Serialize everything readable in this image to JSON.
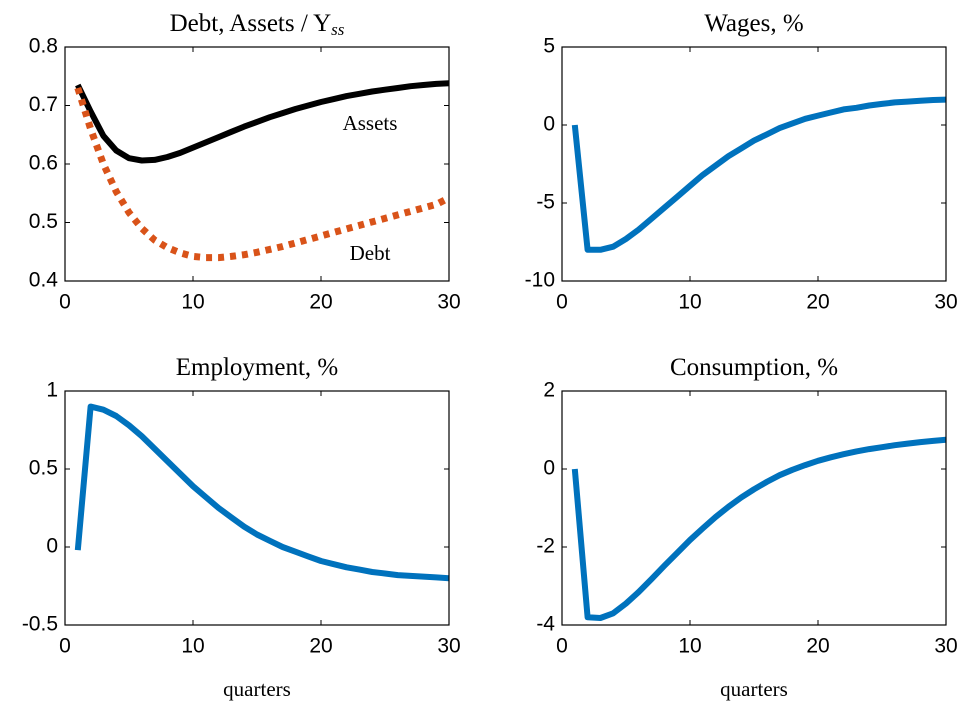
{
  "chart_data": [
    {
      "type": "line",
      "title": "Debt, Assets / Y",
      "title_subscript": "ss",
      "x": [
        1,
        2,
        3,
        4,
        5,
        6,
        7,
        8,
        9,
        10,
        11,
        12,
        13,
        14,
        15,
        16,
        17,
        18,
        19,
        20,
        21,
        22,
        23,
        24,
        25,
        26,
        27,
        28,
        29,
        30
      ],
      "xlim": [
        0,
        30
      ],
      "xticks": [
        0,
        10,
        20,
        30
      ],
      "ylim": [
        0.4,
        0.8
      ],
      "yticks": [
        0.4,
        0.5,
        0.6,
        0.7,
        0.8
      ],
      "annotations": [
        "Assets",
        "Debt"
      ],
      "series": [
        {
          "name": "Assets",
          "color": "#000000",
          "linestyle": "solid",
          "values": [
            0.735,
            0.69,
            0.648,
            0.623,
            0.61,
            0.606,
            0.607,
            0.612,
            0.619,
            0.628,
            0.637,
            0.646,
            0.655,
            0.664,
            0.672,
            0.68,
            0.687,
            0.694,
            0.7,
            0.706,
            0.711,
            0.716,
            0.72,
            0.724,
            0.727,
            0.73,
            0.733,
            0.735,
            0.737,
            0.738
          ]
        },
        {
          "name": "Debt",
          "color": "#d95319",
          "linestyle": "dotted",
          "values": [
            0.73,
            0.66,
            0.6,
            0.553,
            0.517,
            0.49,
            0.47,
            0.457,
            0.448,
            0.442,
            0.44,
            0.44,
            0.442,
            0.445,
            0.449,
            0.454,
            0.459,
            0.465,
            0.471,
            0.477,
            0.483,
            0.489,
            0.495,
            0.501,
            0.507,
            0.513,
            0.519,
            0.525,
            0.531,
            0.542
          ]
        }
      ]
    },
    {
      "type": "line",
      "title": "Wages, %",
      "x": [
        1,
        2,
        3,
        4,
        5,
        6,
        7,
        8,
        9,
        10,
        11,
        12,
        13,
        14,
        15,
        16,
        17,
        18,
        19,
        20,
        21,
        22,
        23,
        24,
        25,
        26,
        27,
        28,
        29,
        30
      ],
      "xlim": [
        0,
        30
      ],
      "xticks": [
        0,
        10,
        20,
        30
      ],
      "ylim": [
        -10,
        5
      ],
      "yticks": [
        -10,
        -5,
        0,
        5
      ],
      "series": [
        {
          "color": "#0072bd",
          "linestyle": "solid",
          "values": [
            0,
            -8,
            -8,
            -7.8,
            -7.3,
            -6.7,
            -6,
            -5.3,
            -4.6,
            -3.9,
            -3.2,
            -2.6,
            -2,
            -1.5,
            -1,
            -0.6,
            -0.2,
            0.1,
            0.4,
            0.6,
            0.8,
            1,
            1.1,
            1.25,
            1.35,
            1.45,
            1.5,
            1.55,
            1.6,
            1.63
          ]
        }
      ]
    },
    {
      "type": "line",
      "title": "Employment, %",
      "xlabel": "quarters",
      "x": [
        1,
        2,
        3,
        4,
        5,
        6,
        7,
        8,
        9,
        10,
        11,
        12,
        13,
        14,
        15,
        16,
        17,
        18,
        19,
        20,
        21,
        22,
        23,
        24,
        25,
        26,
        27,
        28,
        29,
        30
      ],
      "xlim": [
        0,
        30
      ],
      "xticks": [
        0,
        10,
        20,
        30
      ],
      "ylim": [
        -0.5,
        1
      ],
      "yticks": [
        -0.5,
        0,
        0.5,
        1
      ],
      "series": [
        {
          "color": "#0072bd",
          "linestyle": "solid",
          "values": [
            -0.02,
            0.9,
            0.88,
            0.84,
            0.78,
            0.71,
            0.63,
            0.55,
            0.47,
            0.39,
            0.32,
            0.25,
            0.19,
            0.13,
            0.08,
            0.04,
            0,
            -0.03,
            -0.06,
            -0.09,
            -0.11,
            -0.13,
            -0.145,
            -0.16,
            -0.17,
            -0.18,
            -0.185,
            -0.19,
            -0.195,
            -0.2
          ]
        }
      ]
    },
    {
      "type": "line",
      "title": "Consumption, %",
      "xlabel": "quarters",
      "x": [
        1,
        2,
        3,
        4,
        5,
        6,
        7,
        8,
        9,
        10,
        11,
        12,
        13,
        14,
        15,
        16,
        17,
        18,
        19,
        20,
        21,
        22,
        23,
        24,
        25,
        26,
        27,
        28,
        29,
        30
      ],
      "xlim": [
        0,
        30
      ],
      "xticks": [
        0,
        10,
        20,
        30
      ],
      "ylim": [
        -4,
        2
      ],
      "yticks": [
        -4,
        -2,
        0,
        2
      ],
      "series": [
        {
          "color": "#0072bd",
          "linestyle": "solid",
          "values": [
            0,
            -3.8,
            -3.82,
            -3.7,
            -3.45,
            -3.15,
            -2.82,
            -2.48,
            -2.15,
            -1.82,
            -1.52,
            -1.23,
            -0.97,
            -0.73,
            -0.52,
            -0.33,
            -0.16,
            -0.02,
            0.1,
            0.21,
            0.3,
            0.38,
            0.45,
            0.51,
            0.56,
            0.61,
            0.65,
            0.69,
            0.72,
            0.75
          ]
        }
      ]
    }
  ]
}
